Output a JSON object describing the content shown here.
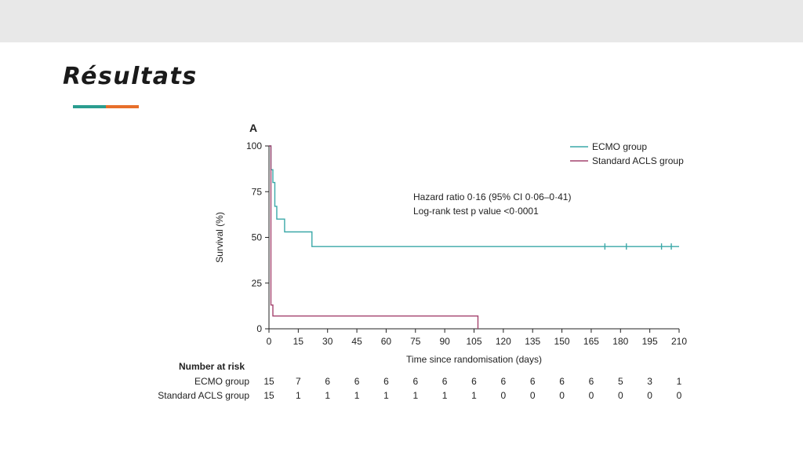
{
  "slide": {
    "title": "Résultats",
    "accent_colors": [
      "#2a9d8f",
      "#e76f2a"
    ]
  },
  "chart_data": {
    "type": "line",
    "panel_label": "A",
    "xlabel": "Time since randomisation (days)",
    "ylabel": "Survival (%)",
    "xlim": [
      0,
      210
    ],
    "ylim": [
      0,
      100
    ],
    "x_ticks": [
      0,
      15,
      30,
      45,
      60,
      75,
      90,
      105,
      120,
      135,
      150,
      165,
      180,
      195,
      210
    ],
    "y_ticks": [
      0,
      25,
      50,
      75,
      100
    ],
    "grid": false,
    "legend_position": "top-right",
    "annotations": [
      "Hazard ratio 0·16 (95% CI 0·06–0·41)",
      "Log-rank test p value <0·0001"
    ],
    "series": [
      {
        "name": "ECMO group",
        "color": "#3aa8a8",
        "step_points": [
          [
            0,
            100
          ],
          [
            1,
            87
          ],
          [
            2,
            80
          ],
          [
            3,
            67
          ],
          [
            4,
            60
          ],
          [
            8,
            53
          ],
          [
            22,
            45
          ],
          [
            210,
            45
          ]
        ],
        "censor_x": [
          172,
          183,
          201,
          206
        ]
      },
      {
        "name": "Standard ACLS group",
        "color": "#a4436e",
        "step_points": [
          [
            0,
            100
          ],
          [
            1,
            13
          ],
          [
            2,
            7
          ],
          [
            107,
            7
          ],
          [
            107,
            0
          ]
        ],
        "censor_x": []
      }
    ],
    "risk_table": {
      "title": "Number at risk",
      "rows": [
        {
          "label": "ECMO group",
          "counts": [
            15,
            7,
            6,
            6,
            6,
            6,
            6,
            6,
            6,
            6,
            6,
            6,
            5,
            3,
            1
          ]
        },
        {
          "label": "Standard ACLS group",
          "counts": [
            15,
            1,
            1,
            1,
            1,
            1,
            1,
            1,
            0,
            0,
            0,
            0,
            0,
            0,
            0
          ]
        }
      ]
    }
  }
}
